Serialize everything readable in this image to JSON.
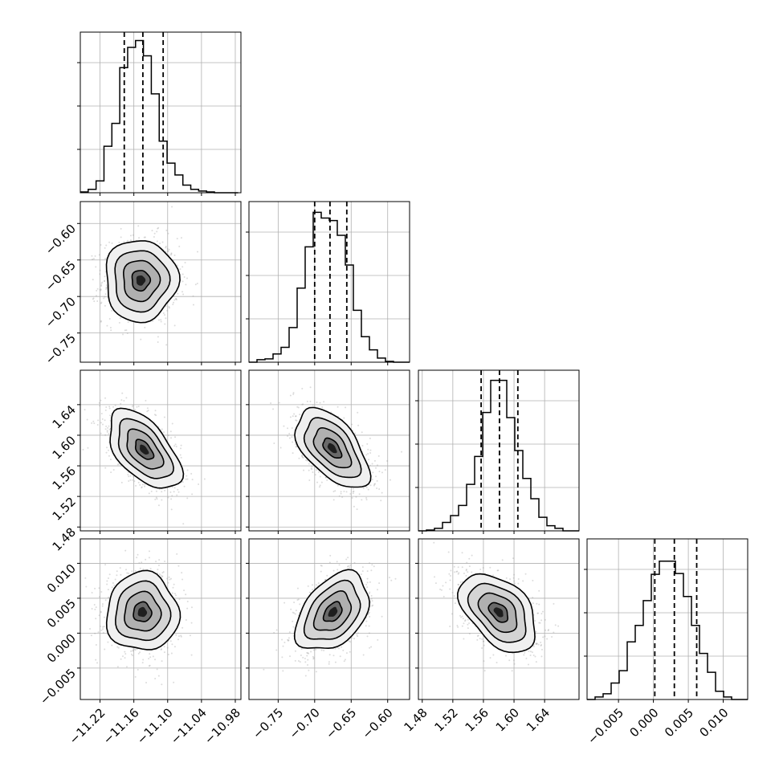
{
  "chart_data": {
    "type": "corner",
    "parameters": [
      {
        "index": 0,
        "range": [
          -11.255,
          -10.97
        ],
        "ticks": [
          -11.22,
          -11.16,
          -11.1,
          -11.04,
          -10.98
        ],
        "tick_labels": [
          "−11.22",
          "−11.16",
          "−11.10",
          "−11.04",
          "−10.98"
        ],
        "quantiles": [
          -11.177,
          -11.144,
          -11.108
        ],
        "histogram": {
          "bin_edges": [
            -11.255,
            -11.241,
            -11.227,
            -11.213,
            -11.199,
            -11.185,
            -11.171,
            -11.157,
            -11.143,
            -11.129,
            -11.115,
            -11.101,
            -11.087,
            -11.073,
            -11.059,
            -11.045,
            -11.031,
            -11.017,
            -11.003,
            -10.989,
            -10.975
          ],
          "counts": [
            1,
            4,
            14,
            55,
            82,
            148,
            172,
            180,
            162,
            117,
            61,
            35,
            21,
            9,
            4,
            2,
            1,
            0,
            0,
            0
          ],
          "y_max": 190
        }
      },
      {
        "index": 1,
        "range": [
          -0.79,
          -0.57
        ],
        "ticks": [
          -0.75,
          -0.7,
          -0.65,
          -0.6
        ],
        "tick_labels": [
          "−0.75",
          "−0.70",
          "−0.65",
          "−0.60"
        ],
        "quantiles": [
          -0.7,
          -0.679,
          -0.656
        ],
        "histogram": {
          "bin_edges": [
            -0.79,
            -0.779,
            -0.768,
            -0.757,
            -0.746,
            -0.735,
            -0.724,
            -0.713,
            -0.702,
            -0.691,
            -0.68,
            -0.669,
            -0.658,
            -0.647,
            -0.636,
            -0.625,
            -0.614,
            -0.603,
            -0.592,
            -0.581,
            -0.57
          ],
          "counts": [
            0,
            3,
            4,
            10,
            18,
            42,
            90,
            140,
            182,
            175,
            172,
            154,
            118,
            63,
            31,
            15,
            5,
            1,
            0,
            0
          ],
          "y_max": 195
        }
      },
      {
        "index": 2,
        "range": [
          1.475,
          1.685
        ],
        "ticks": [
          1.48,
          1.52,
          1.56,
          1.6,
          1.64
        ],
        "tick_labels": [
          "1.48",
          "1.52",
          "1.56",
          "1.60",
          "1.64"
        ],
        "quantiles": [
          1.557,
          1.581,
          1.605
        ],
        "histogram": {
          "bin_edges": [
            1.475,
            1.4855,
            1.496,
            1.5065,
            1.517,
            1.5275,
            1.538,
            1.5485,
            1.559,
            1.5695,
            1.58,
            1.5905,
            1.601,
            1.6115,
            1.622,
            1.6325,
            1.643,
            1.6535,
            1.664,
            1.6745,
            1.685
          ],
          "counts": [
            0,
            1,
            3,
            10,
            18,
            30,
            55,
            88,
            140,
            178,
            178,
            134,
            95,
            62,
            38,
            16,
            6,
            3,
            0,
            0
          ],
          "y_max": 190
        }
      },
      {
        "index": 3,
        "range": [
          -0.0095,
          0.0135
        ],
        "ticks": [
          -0.005,
          0.0,
          0.005,
          0.01
        ],
        "tick_labels": [
          "−0.005",
          "0.000",
          "0.005",
          "0.010"
        ],
        "quantiles": [
          0.0002,
          0.003,
          0.0062
        ],
        "histogram": {
          "bin_edges": [
            -0.0095,
            -0.00835,
            -0.0072,
            -0.00605,
            -0.0049,
            -0.00375,
            -0.0026,
            -0.00145,
            -0.0003,
            0.00085,
            0.002,
            0.00315,
            0.0043,
            0.00545,
            0.0066,
            0.00775,
            0.0089,
            0.01005,
            0.0112,
            0.01235,
            0.0135
          ],
          "counts": [
            0,
            3,
            7,
            20,
            35,
            70,
            90,
            120,
            152,
            168,
            168,
            153,
            125,
            90,
            56,
            33,
            10,
            3,
            0,
            0
          ],
          "y_max": 195
        }
      }
    ],
    "pairs": [
      {
        "row": 1,
        "col": 0,
        "center": [
          -11.148,
          -0.678
        ],
        "spread": [
          0.032,
          0.028
        ],
        "corr": 0.0
      },
      {
        "row": 2,
        "col": 0,
        "center": [
          -11.142,
          1.581
        ],
        "spread": [
          0.032,
          0.026
        ],
        "corr": -0.55
      },
      {
        "row": 2,
        "col": 1,
        "center": [
          -0.676,
          1.583
        ],
        "spread": [
          0.025,
          0.026
        ],
        "corr": -0.55
      },
      {
        "row": 3,
        "col": 0,
        "center": [
          -11.145,
          0.003
        ],
        "spread": [
          0.032,
          0.0028
        ],
        "corr": 0.0
      },
      {
        "row": 3,
        "col": 1,
        "center": [
          -0.675,
          0.003
        ],
        "spread": [
          0.025,
          0.0028
        ],
        "corr": 0.4
      },
      {
        "row": 3,
        "col": 2,
        "center": [
          1.58,
          0.003
        ],
        "spread": [
          0.025,
          0.0028
        ],
        "corr": -0.45
      }
    ]
  }
}
